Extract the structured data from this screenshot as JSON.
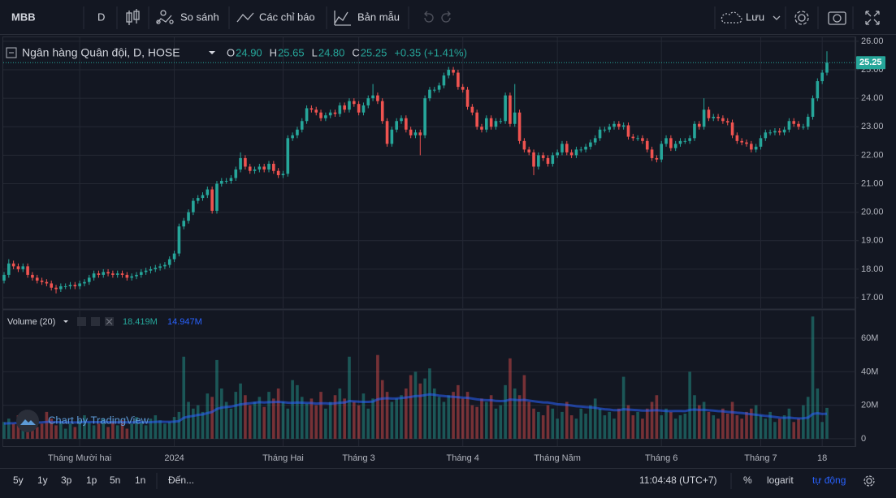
{
  "toolbar": {
    "symbol": "MBB",
    "interval": "D",
    "compare": "So sánh",
    "indicators": "Các chỉ báo",
    "templates": "Bản mẫu",
    "save": "Lưu"
  },
  "watermark": "Chart by TradingView",
  "bottom_bar": {
    "ranges": [
      "5y",
      "1y",
      "3p",
      "1p",
      "5n",
      "1n"
    ],
    "goto": "Đến...",
    "time": "11:04:48 (UTC+7)",
    "percent": "%",
    "log": "logarit",
    "auto": "tự động"
  },
  "chart_data": {
    "type": "candlestick",
    "title": "Ngân hàng Quân đội, D, HOSE",
    "ohlc_names": [
      "O",
      "H",
      "L",
      "C"
    ],
    "ohlc_readout": [
      "24.90",
      "25.65",
      "24.80",
      "25.25"
    ],
    "change_readout": "+0.35 (+1.41%)",
    "last_price_label": "25.25",
    "up_color": "#26a69a",
    "down_color": "#ef5350",
    "xlim": [
      -0.17,
      179.5
    ],
    "xticks": [
      {
        "value": 16,
        "label": "Tháng Mười hai"
      },
      {
        "value": 36,
        "label": "2024"
      },
      {
        "value": 59,
        "label": "Tháng Hai"
      },
      {
        "value": 75,
        "label": "Tháng 3"
      },
      {
        "value": 97,
        "label": "Tháng 4"
      },
      {
        "value": 117,
        "label": "Tháng Năm"
      },
      {
        "value": 139,
        "label": "Tháng 6"
      },
      {
        "value": 160,
        "label": "Tháng 7"
      },
      {
        "value": 173,
        "label": "18"
      }
    ],
    "ylim": [
      16.63,
      26.14
    ],
    "yticks": [
      {
        "value": 17,
        "label": "17.00"
      },
      {
        "value": 18,
        "label": "18.00"
      },
      {
        "value": 19,
        "label": "19.00"
      },
      {
        "value": 20,
        "label": "20.00"
      },
      {
        "value": 21,
        "label": "21.00"
      },
      {
        "value": 22,
        "label": "22.00"
      },
      {
        "value": 23,
        "label": "23.00"
      },
      {
        "value": 24,
        "label": "24.00"
      },
      {
        "value": 25,
        "label": "25.00"
      },
      {
        "value": 26,
        "label": "26.00"
      }
    ],
    "grid": true,
    "open": [
      17.6,
      17.8,
      18.2,
      18.1,
      18.0,
      18.1,
      17.8,
      17.7,
      17.6,
      17.55,
      17.5,
      17.35,
      17.3,
      17.4,
      17.4,
      17.45,
      17.4,
      17.5,
      17.55,
      17.7,
      17.85,
      17.8,
      17.9,
      17.85,
      17.8,
      17.85,
      17.8,
      17.7,
      17.75,
      17.8,
      17.9,
      17.95,
      18.0,
      18.05,
      18.1,
      18.15,
      18.35,
      18.55,
      19.5,
      19.7,
      20.0,
      20.4,
      20.5,
      20.6,
      20.8,
      20.05,
      21.0,
      21.1,
      21.1,
      21.2,
      21.5,
      21.9,
      21.6,
      21.45,
      21.5,
      21.6,
      21.5,
      21.7,
      21.45,
      21.3,
      21.35,
      22.6,
      22.7,
      22.9,
      23.2,
      23.65,
      23.6,
      23.5,
      23.3,
      23.4,
      23.5,
      23.45,
      23.75,
      23.6,
      23.9,
      23.8,
      23.5,
      23.75,
      24.0,
      24.1,
      23.9,
      23.2,
      22.4,
      22.9,
      23.2,
      23.3,
      22.9,
      22.7,
      22.8,
      22.7,
      24.0,
      24.3,
      24.3,
      24.45,
      24.8,
      25.0,
      24.9,
      24.4,
      24.3,
      23.7,
      23.5,
      23.0,
      22.9,
      23.3,
      23.0,
      23.2,
      23.2,
      24.1,
      23.1,
      23.5,
      22.5,
      22.2,
      22.1,
      21.6,
      22.0,
      21.9,
      21.7,
      22.0,
      22.1,
      22.4,
      22.1,
      22.0,
      22.2,
      22.2,
      22.3,
      22.45,
      22.6,
      22.9,
      22.9,
      23.0,
      23.1,
      23.0,
      23.05,
      22.65,
      22.6,
      22.6,
      22.5,
      22.2,
      21.9,
      21.85,
      22.4,
      22.6,
      22.25,
      22.4,
      22.5,
      22.5,
      22.6,
      23.1,
      23.0,
      23.6,
      23.3,
      23.35,
      23.3,
      23.2,
      23.15,
      22.7,
      22.5,
      22.45,
      22.4,
      22.2,
      22.3,
      22.6,
      22.8,
      22.8,
      22.85,
      22.8,
      22.9,
      23.2,
      23.1,
      23.0,
      23.0,
      23.35,
      24.0,
      24.6,
      24.9
    ],
    "high": [
      17.9,
      18.35,
      18.3,
      18.2,
      18.2,
      18.2,
      17.9,
      17.8,
      17.7,
      17.65,
      17.6,
      17.45,
      17.5,
      17.5,
      17.55,
      17.55,
      17.6,
      17.65,
      17.8,
      17.95,
      17.95,
      18.0,
      18.0,
      17.95,
      17.95,
      17.95,
      17.9,
      17.85,
      17.9,
      18.0,
      18.05,
      18.1,
      18.15,
      18.2,
      18.25,
      18.45,
      18.65,
      19.6,
      19.8,
      20.1,
      20.5,
      20.6,
      20.7,
      20.9,
      20.9,
      21.1,
      21.2,
      21.2,
      21.3,
      21.6,
      22.1,
      22.0,
      21.7,
      21.6,
      21.7,
      21.7,
      21.8,
      21.8,
      21.55,
      21.45,
      22.7,
      22.8,
      23.0,
      23.3,
      23.75,
      23.75,
      23.7,
      23.6,
      23.5,
      23.6,
      23.6,
      23.85,
      23.85,
      24.0,
      24.0,
      23.9,
      23.85,
      24.1,
      24.5,
      24.2,
      24.0,
      23.3,
      23.0,
      23.3,
      23.4,
      23.4,
      23.0,
      22.9,
      22.9,
      24.1,
      24.4,
      24.4,
      24.55,
      24.9,
      25.1,
      25.1,
      25.0,
      24.5,
      24.4,
      23.8,
      23.6,
      23.1,
      23.4,
      23.4,
      23.3,
      23.3,
      24.2,
      24.2,
      24.5,
      23.6,
      22.6,
      22.3,
      22.2,
      22.1,
      22.1,
      22.0,
      22.1,
      22.2,
      22.5,
      22.5,
      22.2,
      22.3,
      22.3,
      22.4,
      22.55,
      22.7,
      23.0,
      23.0,
      23.1,
      23.2,
      23.2,
      23.15,
      23.15,
      22.75,
      22.7,
      22.7,
      22.6,
      22.3,
      22.0,
      22.5,
      22.7,
      22.7,
      22.5,
      22.6,
      22.6,
      22.7,
      23.2,
      23.2,
      24.0,
      23.7,
      23.45,
      23.45,
      23.4,
      23.3,
      23.25,
      22.8,
      22.6,
      22.55,
      22.5,
      22.4,
      22.7,
      22.9,
      22.9,
      22.95,
      22.95,
      23.0,
      23.3,
      23.3,
      23.2,
      23.1,
      23.45,
      24.1,
      24.7,
      25.0,
      25.65
    ],
    "low": [
      17.5,
      17.7,
      18.0,
      17.9,
      17.9,
      17.7,
      17.6,
      17.5,
      17.45,
      17.4,
      17.25,
      17.15,
      17.2,
      17.3,
      17.3,
      17.3,
      17.3,
      17.4,
      17.45,
      17.6,
      17.7,
      17.7,
      17.75,
      17.7,
      17.7,
      17.7,
      17.6,
      17.6,
      17.65,
      17.7,
      17.8,
      17.85,
      17.9,
      17.95,
      18.0,
      18.05,
      18.25,
      18.45,
      19.4,
      19.6,
      19.9,
      20.3,
      20.4,
      20.5,
      19.95,
      19.95,
      20.9,
      21.0,
      21.0,
      21.1,
      21.4,
      21.5,
      21.35,
      21.35,
      21.4,
      21.4,
      21.4,
      21.35,
      21.2,
      21.2,
      21.25,
      22.5,
      22.6,
      22.8,
      23.1,
      23.5,
      23.4,
      23.2,
      23.2,
      23.3,
      23.35,
      23.35,
      23.5,
      23.5,
      23.7,
      23.4,
      23.4,
      23.65,
      23.9,
      23.8,
      23.1,
      22.3,
      22.3,
      22.8,
      23.1,
      22.8,
      22.6,
      22.6,
      22.0,
      22.6,
      23.9,
      24.2,
      24.2,
      24.35,
      24.7,
      24.8,
      24.3,
      24.2,
      23.6,
      23.4,
      22.9,
      22.8,
      22.8,
      22.9,
      22.9,
      23.1,
      23.1,
      23.0,
      23.0,
      22.4,
      22.1,
      22.0,
      21.3,
      21.5,
      21.8,
      21.6,
      21.6,
      21.9,
      22.0,
      22.0,
      21.9,
      21.9,
      22.1,
      22.1,
      22.2,
      22.35,
      22.5,
      22.8,
      22.8,
      22.9,
      22.9,
      22.9,
      22.55,
      22.5,
      22.5,
      22.4,
      22.1,
      21.8,
      21.75,
      21.75,
      22.3,
      22.15,
      22.15,
      22.3,
      22.4,
      22.4,
      22.5,
      22.9,
      22.9,
      23.2,
      23.2,
      23.2,
      23.1,
      23.05,
      22.6,
      22.4,
      22.35,
      22.3,
      22.1,
      22.1,
      22.2,
      22.5,
      22.7,
      22.7,
      22.7,
      22.7,
      22.8,
      23.0,
      22.9,
      22.9,
      22.9,
      23.25,
      23.9,
      24.5,
      24.8
    ],
    "close": [
      17.8,
      18.2,
      18.1,
      18.0,
      18.1,
      17.8,
      17.7,
      17.6,
      17.55,
      17.5,
      17.35,
      17.3,
      17.4,
      17.4,
      17.45,
      17.4,
      17.5,
      17.55,
      17.7,
      17.85,
      17.8,
      17.9,
      17.85,
      17.8,
      17.85,
      17.8,
      17.7,
      17.75,
      17.8,
      17.9,
      17.95,
      18.0,
      18.05,
      18.1,
      18.15,
      18.35,
      18.55,
      19.5,
      19.7,
      20.0,
      20.4,
      20.5,
      20.6,
      20.8,
      20.05,
      21.0,
      21.1,
      21.1,
      21.2,
      21.5,
      21.9,
      21.6,
      21.45,
      21.5,
      21.6,
      21.5,
      21.7,
      21.45,
      21.3,
      21.35,
      22.6,
      22.7,
      22.9,
      23.2,
      23.65,
      23.6,
      23.5,
      23.3,
      23.4,
      23.5,
      23.45,
      23.75,
      23.6,
      23.9,
      23.8,
      23.5,
      23.75,
      24.0,
      24.1,
      23.9,
      23.2,
      22.4,
      22.9,
      23.2,
      23.3,
      22.9,
      22.7,
      22.8,
      22.7,
      24.0,
      24.3,
      24.3,
      24.45,
      24.8,
      25.0,
      24.9,
      24.4,
      24.3,
      23.7,
      23.5,
      23.0,
      22.9,
      23.3,
      23.0,
      23.2,
      23.2,
      24.1,
      23.1,
      23.5,
      22.5,
      22.2,
      22.1,
      21.6,
      22.0,
      21.9,
      21.7,
      22.0,
      22.1,
      22.4,
      22.1,
      22.0,
      22.2,
      22.2,
      22.3,
      22.45,
      22.6,
      22.9,
      22.9,
      23.0,
      23.1,
      23.0,
      23.05,
      22.65,
      22.6,
      22.6,
      22.5,
      22.2,
      21.9,
      21.85,
      22.4,
      22.6,
      22.25,
      22.4,
      22.5,
      22.5,
      22.6,
      23.1,
      23.0,
      23.6,
      23.3,
      23.35,
      23.3,
      23.2,
      23.15,
      22.7,
      22.5,
      22.45,
      22.4,
      22.2,
      22.3,
      22.6,
      22.8,
      22.8,
      22.85,
      22.8,
      22.9,
      23.2,
      23.1,
      23.0,
      23.0,
      23.35,
      24.0,
      24.6,
      24.9,
      25.25
    ],
    "volume": {
      "name": "Volume (20)",
      "readout": "18.419M",
      "ma_readout": "14.947M",
      "ma_color": "#2962ff",
      "ylim": [
        -4.4,
        76.5
      ],
      "yticks": [
        0,
        {
          "value": 20,
          "label": "20M"
        },
        {
          "value": 40,
          "label": "40M"
        },
        {
          "value": 60,
          "label": "60M"
        }
      ],
      "values": [
        10,
        12,
        9,
        14,
        11,
        8,
        13,
        7,
        9,
        16,
        12,
        8,
        10,
        6,
        9,
        7,
        11,
        14,
        10,
        8,
        9,
        12,
        7,
        10,
        8,
        11,
        6,
        9,
        13,
        10,
        8,
        12,
        14,
        11,
        9,
        10,
        13,
        16,
        49,
        22,
        18,
        20,
        16,
        27,
        25,
        47,
        30,
        22,
        18,
        28,
        33,
        26,
        20,
        22,
        25,
        19,
        28,
        24,
        30,
        22,
        18,
        35,
        32,
        25,
        21,
        24,
        20,
        28,
        18,
        22,
        26,
        30,
        24,
        49,
        22,
        20,
        27,
        18,
        24,
        50,
        35,
        28,
        22,
        24,
        26,
        30,
        38,
        40,
        33,
        36,
        42,
        30,
        25,
        22,
        26,
        28,
        32,
        24,
        28,
        20,
        19,
        24,
        22,
        26,
        18,
        20,
        32,
        48,
        30,
        26,
        38,
        22,
        18,
        16,
        14,
        20,
        18,
        12,
        16,
        22,
        14,
        12,
        18,
        15,
        20,
        24,
        18,
        14,
        16,
        12,
        18,
        37,
        20,
        14,
        16,
        12,
        18,
        22,
        26,
        14,
        18,
        16,
        12,
        14,
        15,
        40,
        26,
        20,
        22,
        16,
        14,
        12,
        18,
        15,
        22,
        14,
        12,
        16,
        18,
        20,
        14,
        12,
        16,
        10,
        12,
        14,
        18,
        10,
        12,
        20,
        25,
        73,
        30,
        10,
        18.419
      ],
      "ma": [
        9,
        9.2,
        9.3,
        9.5,
        9.6,
        9.6,
        9.8,
        9.7,
        9.8,
        10,
        10,
        9.9,
        9.9,
        9.8,
        9.8,
        9.7,
        9.8,
        10,
        10,
        9.9,
        9.9,
        10,
        9.9,
        9.9,
        9.8,
        9.9,
        9.8,
        9.8,
        9.9,
        9.9,
        9.8,
        9.9,
        10.1,
        10.2,
        10.1,
        10.1,
        10.2,
        10.5,
        12.5,
        13.2,
        13.6,
        14.2,
        14.5,
        15.3,
        16,
        17.8,
        18.6,
        18.9,
        19.2,
        19.8,
        20.5,
        20.9,
        21.2,
        21.5,
        21.8,
        21.6,
        21.8,
        21.9,
        22,
        21.8,
        21.5,
        21.4,
        21.6,
        21.5,
        21.4,
        21.3,
        21.0,
        21.2,
        21.2,
        21.0,
        21.2,
        21.5,
        21.6,
        22.5,
        22.3,
        22.1,
        22.0,
        22.0,
        22.2,
        23.5,
        24,
        24.2,
        24.0,
        24.1,
        24.3,
        24.6,
        25.0,
        25.5,
        25.6,
        26,
        26.5,
        26.2,
        25.8,
        25.5,
        25.2,
        25.0,
        24.8,
        24.5,
        24.4,
        24.0,
        23.5,
        23.2,
        23.0,
        23.0,
        22.6,
        22.5,
        22.6,
        23.4,
        23.2,
        23.0,
        23.2,
        22.8,
        22.4,
        22.0,
        21.7,
        21.6,
        21.2,
        20.6,
        20.4,
        20.2,
        19.8,
        19.4,
        19.2,
        18.9,
        18.7,
        18.5,
        18.0,
        17.6,
        17.4,
        17.0,
        17,
        17.6,
        17.4,
        17.2,
        17.0,
        16.8,
        16.8,
        16.9,
        17.0,
        16.8,
        16.6,
        16.5,
        16.6,
        16.6,
        16.5,
        17.2,
        17.4,
        17.2,
        17.3,
        17.0,
        16.8,
        16.5,
        16.4,
        16.0,
        15.8,
        15.5,
        15.3,
        15.0,
        14.6,
        14.3,
        14.0,
        13.6,
        13.4,
        13.0,
        12.6,
        12.4,
        12.6,
        12.3,
        12.1,
        12.2,
        12.6,
        14.8,
        15.2,
        14.8,
        14.947
      ]
    }
  }
}
